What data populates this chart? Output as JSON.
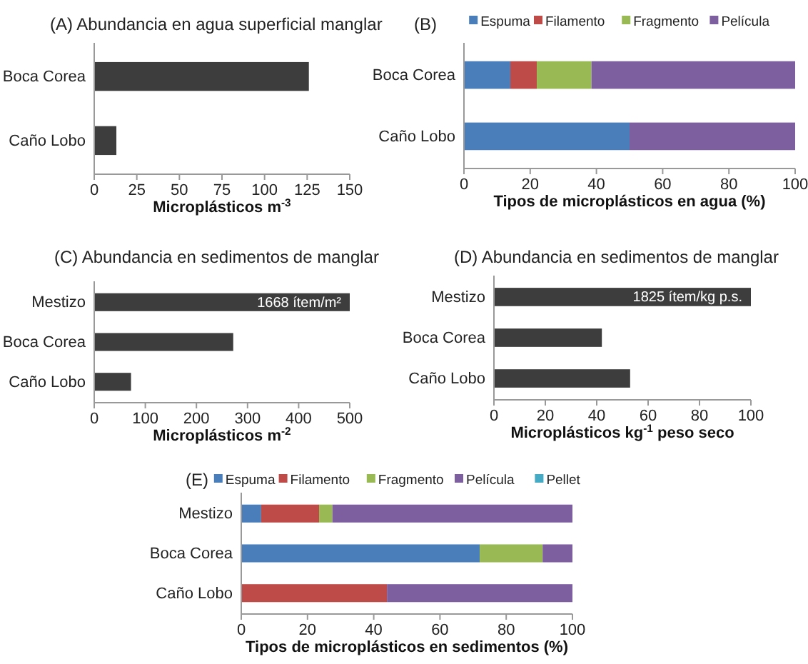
{
  "chart_data": [
    {
      "type": "bar",
      "orientation": "horizontal",
      "title": "(A) Abundancia en agua superficial  manglar",
      "xlabel": "Microplásticos m$^{-3}$",
      "categories": [
        "Boca Corea",
        "Caño Lobo"
      ],
      "values": [
        126,
        13
      ],
      "color": "#3d3d3d",
      "xlim": [
        0,
        150
      ],
      "xticks": [
        0,
        25,
        50,
        75,
        100,
        125,
        150
      ],
      "grid": false,
      "legend": false
    },
    {
      "type": "bar",
      "orientation": "horizontal",
      "stacked": true,
      "title": "(B)",
      "xlabel": "Tipos de microplásticos en agua (%)",
      "categories": [
        "Boca Corea",
        "Caño Lobo"
      ],
      "series": [
        {
          "name": "Espuma",
          "color": "#4a7ebb",
          "values": [
            14,
            50
          ]
        },
        {
          "name": "Filamento",
          "color": "#be4b48",
          "values": [
            8,
            0
          ]
        },
        {
          "name": "Fragmento",
          "color": "#98b954",
          "values": [
            16.5,
            0
          ]
        },
        {
          "name": "Película",
          "color": "#7d5fa0",
          "values": [
            61.5,
            50
          ]
        }
      ],
      "xlim": [
        0,
        100
      ],
      "xticks": [
        0,
        20,
        40,
        60,
        80,
        100
      ],
      "grid": false,
      "legend": "top"
    },
    {
      "type": "bar",
      "orientation": "horizontal",
      "title": "(C) Abundancia en sedimentos de manglar",
      "xlabel": "Microplásticos m$^{-2}$",
      "categories": [
        "Mestizo",
        "Boca Corea",
        "Caño Lobo"
      ],
      "values": [
        500,
        272,
        72
      ],
      "color": "#3d3d3d",
      "xlim": [
        0,
        500
      ],
      "xticks": [
        0,
        100,
        200,
        300,
        400,
        500
      ],
      "grid": false,
      "legend": false,
      "annotations": [
        {
          "text": "1668 ítem/m²",
          "x": 500,
          "y": "Mestizo"
        }
      ]
    },
    {
      "type": "bar",
      "orientation": "horizontal",
      "title": "(D) Abundancia en sedimentos de manglar",
      "xlabel": "Microplásticos kg$^{-1}$ peso seco",
      "categories": [
        "Mestizo",
        "Boca Corea",
        "Caño Lobo"
      ],
      "values": [
        100,
        42,
        53
      ],
      "color": "#3d3d3d",
      "xlim": [
        0,
        100
      ],
      "xticks": [
        0,
        20,
        40,
        60,
        80,
        100
      ],
      "grid": false,
      "legend": false,
      "annotations": [
        {
          "text": "1825 ítem/kg p.s.",
          "x": 100,
          "y": "Mestizo"
        }
      ]
    },
    {
      "type": "bar",
      "orientation": "horizontal",
      "stacked": true,
      "title": "(E)",
      "xlabel": "Tipos de microplásticos en sedimentos (%)",
      "categories": [
        "Mestizo",
        "Boca Corea",
        "Caño Lobo"
      ],
      "series": [
        {
          "name": "Espuma",
          "color": "#4a7ebb",
          "values": [
            6,
            72,
            0
          ]
        },
        {
          "name": "Filamento",
          "color": "#be4b48",
          "values": [
            17.5,
            0,
            44
          ]
        },
        {
          "name": "Fragmento",
          "color": "#98b954",
          "values": [
            4,
            19,
            0
          ]
        },
        {
          "name": "Película",
          "color": "#7d5fa0",
          "values": [
            72.5,
            9,
            56
          ]
        },
        {
          "name": "Pellet",
          "color": "#46aac5",
          "values": [
            0,
            0,
            0
          ]
        }
      ],
      "xlim": [
        0,
        100
      ],
      "xticks": [
        0,
        20,
        40,
        60,
        80,
        100
      ],
      "grid": false,
      "legend": "top"
    }
  ]
}
